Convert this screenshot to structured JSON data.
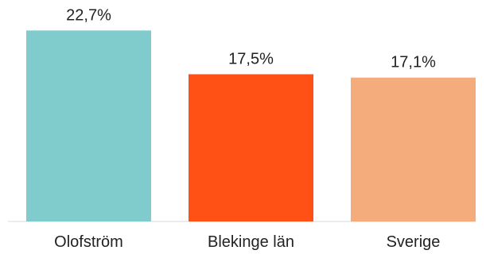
{
  "chart_data": {
    "type": "bar",
    "categories": [
      "Olofström",
      "Blekinge län",
      "Sverige"
    ],
    "values": [
      22.7,
      17.5,
      17.1
    ],
    "value_labels": [
      "22,7%",
      "17,5%",
      "17,1%"
    ],
    "colors": [
      "#80CCCC",
      "#FF5015",
      "#F4AC7C"
    ],
    "ylim": [
      0,
      25
    ],
    "grid": false,
    "legend": "none",
    "title": "",
    "xlabel": "",
    "ylabel": ""
  }
}
